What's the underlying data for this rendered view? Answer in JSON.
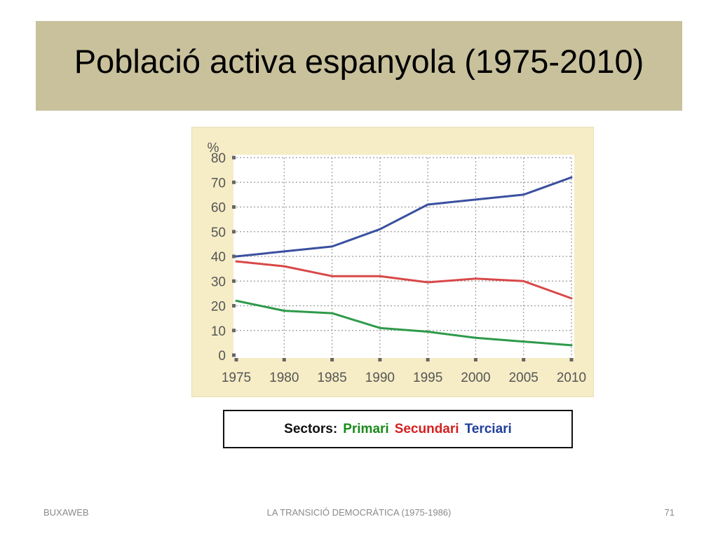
{
  "slide": {
    "title": "Població activa espanyola (1975-2010)",
    "footer_left": "BUXAWEB",
    "footer_center": "LA TRANSICIÓ DEMOCRÀTICA (1975-1986)",
    "footer_right": "71"
  },
  "legend": {
    "prefix": "Sectors:",
    "items": [
      {
        "label": "Primari",
        "color": "#1a8a1a"
      },
      {
        "label": "Secundari",
        "color": "#d42020"
      },
      {
        "label": "Terciari",
        "color": "#1f3f9a"
      }
    ]
  },
  "chart_data": {
    "type": "line",
    "ylabel": "%",
    "x": [
      1975,
      1980,
      1985,
      1990,
      1995,
      2000,
      2005,
      2010
    ],
    "x_tick_labels": [
      "1975",
      "1980",
      "1985",
      "1990",
      "1995",
      "2000",
      "2005",
      "2010"
    ],
    "y_tick_labels": [
      "0",
      "10",
      "20",
      "30",
      "40",
      "50",
      "60",
      "70",
      "80"
    ],
    "ylim": [
      0,
      80
    ],
    "grid": true,
    "series": [
      {
        "name": "Terciari",
        "color": "#3a4fa0",
        "values": [
          40,
          42,
          44,
          51,
          61,
          63,
          65,
          72
        ]
      },
      {
        "name": "Secundari",
        "color": "#d94848",
        "values": [
          38,
          36,
          32,
          32,
          29.5,
          31,
          30,
          23
        ]
      },
      {
        "name": "Primari",
        "color": "#2e9a4a",
        "values": [
          22,
          18,
          17,
          11,
          9.5,
          7,
          5.5,
          4
        ]
      }
    ],
    "colors": {
      "background": "#f6edc6",
      "plot_background": "#ffffff",
      "grid": "#9a9a9a",
      "axis_text": "#555555"
    }
  }
}
